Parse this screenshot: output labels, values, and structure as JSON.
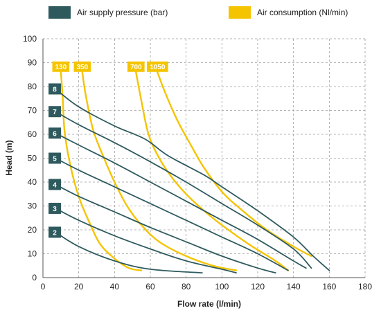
{
  "chart_data": {
    "type": "line",
    "xlabel": "Flow rate (l/min)",
    "ylabel": "Head (m)",
    "xlim": [
      0,
      180
    ],
    "ylim": [
      0,
      100
    ],
    "xticks": [
      0,
      20,
      40,
      60,
      80,
      100,
      120,
      140,
      160,
      180
    ],
    "yticks": [
      0,
      10,
      20,
      30,
      40,
      50,
      60,
      70,
      80,
      90,
      100
    ],
    "grid": true,
    "legend": [
      {
        "label": "Air supply pressure (bar)",
        "color": "#2e5a5e"
      },
      {
        "label": "Air consumption (Nl/min)",
        "color": "#f5c400"
      }
    ],
    "pressure_series": [
      {
        "name": "2",
        "color": "#2e5a5e",
        "points": [
          [
            7,
            19
          ],
          [
            20,
            13
          ],
          [
            40,
            7
          ],
          [
            60,
            3.5
          ],
          [
            89,
            2
          ]
        ]
      },
      {
        "name": "3",
        "color": "#2e5a5e",
        "points": [
          [
            7,
            29
          ],
          [
            20,
            24
          ],
          [
            40,
            17.5
          ],
          [
            60,
            12
          ],
          [
            80,
            7
          ],
          [
            100,
            3.5
          ],
          [
            108,
            2
          ]
        ]
      },
      {
        "name": "4",
        "color": "#2e5a5e",
        "points": [
          [
            7,
            39
          ],
          [
            20,
            34
          ],
          [
            40,
            27.5
          ],
          [
            60,
            21
          ],
          [
            80,
            15
          ],
          [
            100,
            9
          ],
          [
            120,
            4
          ],
          [
            130,
            2
          ]
        ]
      },
      {
        "name": "5",
        "color": "#2e5a5e",
        "points": [
          [
            7,
            50
          ],
          [
            20,
            45
          ],
          [
            40,
            38
          ],
          [
            60,
            31
          ],
          [
            80,
            24
          ],
          [
            100,
            17
          ],
          [
            120,
            10
          ],
          [
            137,
            3
          ]
        ]
      },
      {
        "name": "6",
        "color": "#2e5a5e",
        "points": [
          [
            7,
            60.5
          ],
          [
            20,
            55.5
          ],
          [
            40,
            48
          ],
          [
            60,
            40
          ],
          [
            80,
            32
          ],
          [
            100,
            24
          ],
          [
            120,
            16
          ],
          [
            140,
            7
          ],
          [
            147,
            4
          ]
        ]
      },
      {
        "name": "7",
        "color": "#2e5a5e",
        "points": [
          [
            7,
            69.5
          ],
          [
            20,
            64
          ],
          [
            40,
            56.5
          ],
          [
            60,
            48.5
          ],
          [
            80,
            40
          ],
          [
            100,
            31
          ],
          [
            120,
            22
          ],
          [
            140,
            12
          ],
          [
            150,
            4
          ]
        ]
      },
      {
        "name": "8",
        "color": "#2e5a5e",
        "points": [
          [
            7,
            79
          ],
          [
            20,
            71.5
          ],
          [
            40,
            63.5
          ],
          [
            57,
            58
          ],
          [
            70,
            51
          ],
          [
            90,
            43
          ],
          [
            100,
            38
          ],
          [
            120,
            28
          ],
          [
            140,
            17
          ],
          [
            151,
            9
          ],
          [
            160,
            3
          ]
        ]
      }
    ],
    "consumption_series": [
      {
        "name": "130",
        "color": "#f5c400",
        "points": [
          [
            10,
            86
          ],
          [
            11,
            76
          ],
          [
            12,
            62
          ],
          [
            15,
            48
          ],
          [
            20,
            34
          ],
          [
            26,
            23
          ],
          [
            32,
            14
          ],
          [
            40,
            8
          ],
          [
            48,
            4
          ],
          [
            55,
            3
          ]
        ]
      },
      {
        "name": "350",
        "color": "#f5c400",
        "points": [
          [
            22,
            86
          ],
          [
            24,
            76
          ],
          [
            28,
            62
          ],
          [
            33,
            52
          ],
          [
            40,
            40
          ],
          [
            47,
            30
          ],
          [
            55,
            22
          ],
          [
            65,
            15
          ],
          [
            80,
            9
          ],
          [
            95,
            5
          ],
          [
            108,
            3
          ]
        ]
      },
      {
        "name": "700",
        "color": "#f5c400",
        "points": [
          [
            52,
            86
          ],
          [
            55,
            74
          ],
          [
            59,
            60
          ],
          [
            65,
            50
          ],
          [
            72,
            42
          ],
          [
            80,
            35
          ],
          [
            90,
            28
          ],
          [
            100,
            22
          ],
          [
            115,
            14
          ],
          [
            130,
            7
          ],
          [
            137,
            3
          ]
        ]
      },
      {
        "name": "1050",
        "color": "#f5c400",
        "points": [
          [
            64,
            86
          ],
          [
            68,
            78
          ],
          [
            75,
            66
          ],
          [
            83,
            55
          ],
          [
            90,
            46
          ],
          [
            100,
            36
          ],
          [
            110,
            29
          ],
          [
            125,
            20
          ],
          [
            140,
            13
          ],
          [
            150,
            9
          ]
        ]
      }
    ]
  }
}
